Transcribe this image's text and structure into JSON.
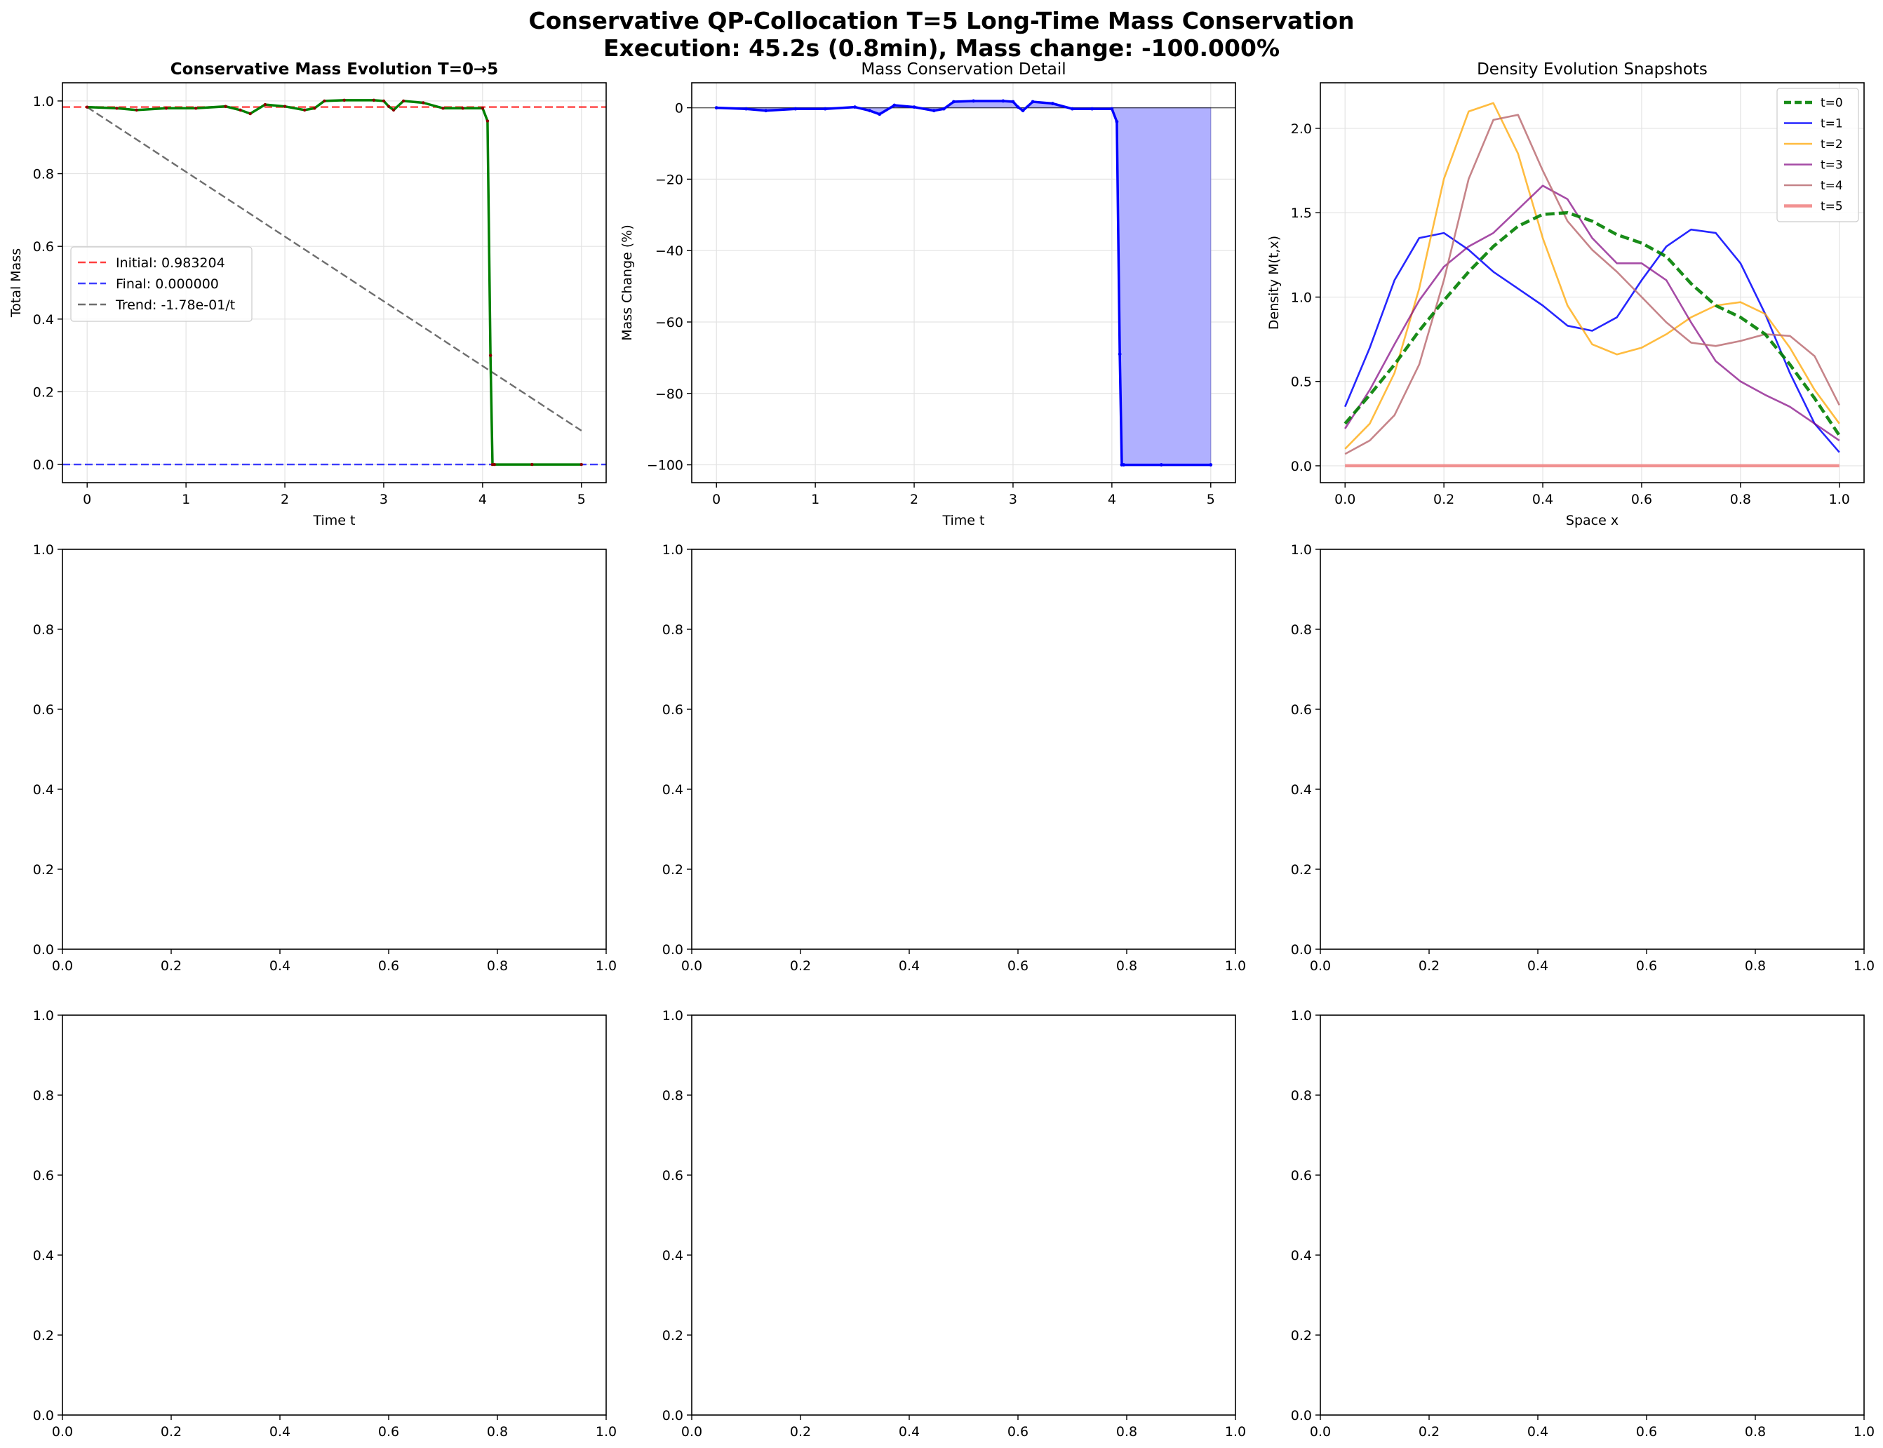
{
  "figure": {
    "title_line1": "Conservative QP-Collocation T=5 Long-Time Mass Conservation",
    "title_line2": "Execution: 45.2s (0.8min), Mass change: -100.000%"
  },
  "colors": {
    "mass": "#008000",
    "mass_dots": "#8b0000",
    "initial": "#ff0000",
    "final": "#0000ff",
    "trend": "#555555",
    "change": "#0000ff",
    "fill": "#b0b0ff",
    "t0": "#008000",
    "t1": "#0000ff",
    "t2": "#ffa500",
    "t3": "#800080",
    "t4": "#bc6f74",
    "t5": "#f08080"
  },
  "chart_data": [
    {
      "type": "line",
      "title": "Conservative Mass Evolution T=0→5",
      "xlabel": "Time t",
      "ylabel": "Total Mass",
      "xlim": [
        -0.25,
        5.25
      ],
      "ylim": [
        -0.05,
        1.05
      ],
      "xticks": [
        "0",
        "1",
        "2",
        "3",
        "4",
        "5"
      ],
      "yticks": [
        "0.0",
        "0.2",
        "0.4",
        "0.6",
        "0.8",
        "1.0"
      ],
      "grid": true,
      "legend_position": "center-left",
      "series": [
        {
          "name": "",
          "x": [
            0,
            0.3,
            0.5,
            0.8,
            1.1,
            1.4,
            1.55,
            1.65,
            1.8,
            2.0,
            2.2,
            2.3,
            2.4,
            2.6,
            2.9,
            3.0,
            3.05,
            3.1,
            3.2,
            3.4,
            3.6,
            3.8,
            4.0,
            4.05,
            4.08,
            4.1,
            4.12,
            4.5,
            5.0
          ],
          "y": [
            0.983,
            0.98,
            0.975,
            0.98,
            0.98,
            0.985,
            0.975,
            0.965,
            0.99,
            0.985,
            0.975,
            0.98,
            1.0,
            1.002,
            1.002,
            1.0,
            0.985,
            0.975,
            1.0,
            0.995,
            0.98,
            0.98,
            0.98,
            0.945,
            0.3,
            0.0,
            0.0,
            0.0,
            0.0
          ]
        },
        {
          "name": "Initial: 0.983204",
          "x": [
            -0.25,
            5.25
          ],
          "y": [
            0.983204,
            0.983204
          ]
        },
        {
          "name": "Final: 0.000000",
          "x": [
            -0.25,
            5.25
          ],
          "y": [
            0,
            0
          ]
        },
        {
          "name": "Trend: -1.78e-01/t",
          "x": [
            0,
            5
          ],
          "y": [
            0.983,
            0.093
          ]
        }
      ]
    },
    {
      "type": "area",
      "title": "Mass Conservation Detail",
      "xlabel": "Time t",
      "ylabel": "Mass Change (%)",
      "xlim": [
        -0.25,
        5.25
      ],
      "ylim": [
        -105,
        7
      ],
      "xticks": [
        "0",
        "1",
        "2",
        "3",
        "4",
        "5"
      ],
      "yticks": [
        "−100",
        "−80",
        "−60",
        "−40",
        "−20",
        "0"
      ],
      "reference_line": 0,
      "grid": true,
      "series": [
        {
          "name": "",
          "x": [
            0,
            0.3,
            0.5,
            0.8,
            1.1,
            1.4,
            1.55,
            1.65,
            1.8,
            2.0,
            2.2,
            2.3,
            2.4,
            2.6,
            2.9,
            3.0,
            3.05,
            3.1,
            3.2,
            3.4,
            3.6,
            3.8,
            4.0,
            4.05,
            4.08,
            4.1,
            4.12,
            4.5,
            5.0
          ],
          "y": [
            0,
            -0.3,
            -0.8,
            -0.3,
            -0.3,
            0.2,
            -0.8,
            -1.8,
            0.7,
            0.2,
            -0.8,
            -0.3,
            1.7,
            1.9,
            1.9,
            1.7,
            0.2,
            -0.8,
            1.7,
            1.2,
            -0.3,
            -0.3,
            -0.3,
            -3.9,
            -69,
            -100,
            -100,
            -100,
            -100
          ]
        }
      ]
    },
    {
      "type": "line",
      "title": "Density Evolution Snapshots",
      "xlabel": "Space x",
      "ylabel": "Density M(t,x)",
      "xlim": [
        -0.05,
        1.05
      ],
      "ylim": [
        -0.1,
        2.27
      ],
      "xticks": [
        "0.0",
        "0.2",
        "0.4",
        "0.6",
        "0.8",
        "1.0"
      ],
      "yticks": [
        "0.0",
        "0.5",
        "1.0",
        "1.5",
        "2.0"
      ],
      "grid": true,
      "legend_position": "top-right",
      "series": [
        {
          "name": "t=0",
          "x": [
            0,
            0.05,
            0.1,
            0.15,
            0.2,
            0.25,
            0.3,
            0.35,
            0.4,
            0.45,
            0.5,
            0.55,
            0.6,
            0.65,
            0.7,
            0.75,
            0.8,
            0.85,
            0.9,
            0.95,
            1.0
          ],
          "y": [
            0.25,
            0.42,
            0.6,
            0.8,
            0.98,
            1.15,
            1.3,
            1.42,
            1.49,
            1.5,
            1.45,
            1.37,
            1.32,
            1.24,
            1.08,
            0.95,
            0.88,
            0.78,
            0.6,
            0.4,
            0.18
          ]
        },
        {
          "name": "t=1",
          "x": [
            0,
            0.05,
            0.1,
            0.15,
            0.2,
            0.25,
            0.3,
            0.35,
            0.4,
            0.45,
            0.5,
            0.55,
            0.6,
            0.65,
            0.7,
            0.75,
            0.8,
            0.85,
            0.9,
            0.95,
            1.0
          ],
          "y": [
            0.35,
            0.7,
            1.1,
            1.35,
            1.38,
            1.28,
            1.15,
            1.05,
            0.95,
            0.83,
            0.8,
            0.88,
            1.1,
            1.3,
            1.4,
            1.38,
            1.2,
            0.9,
            0.55,
            0.25,
            0.08
          ]
        },
        {
          "name": "t=2",
          "x": [
            0,
            0.05,
            0.1,
            0.15,
            0.2,
            0.25,
            0.3,
            0.35,
            0.4,
            0.45,
            0.5,
            0.55,
            0.6,
            0.65,
            0.7,
            0.75,
            0.8,
            0.85,
            0.9,
            0.95,
            1.0
          ],
          "y": [
            0.1,
            0.25,
            0.55,
            1.05,
            1.7,
            2.1,
            2.15,
            1.85,
            1.35,
            0.95,
            0.72,
            0.66,
            0.7,
            0.78,
            0.88,
            0.95,
            0.97,
            0.9,
            0.7,
            0.45,
            0.25
          ]
        },
        {
          "name": "t=3",
          "x": [
            0,
            0.05,
            0.1,
            0.15,
            0.2,
            0.25,
            0.3,
            0.35,
            0.4,
            0.45,
            0.5,
            0.55,
            0.6,
            0.65,
            0.7,
            0.75,
            0.8,
            0.85,
            0.9,
            0.95,
            1.0
          ],
          "y": [
            0.22,
            0.45,
            0.72,
            0.98,
            1.18,
            1.3,
            1.38,
            1.52,
            1.66,
            1.58,
            1.35,
            1.2,
            1.2,
            1.1,
            0.85,
            0.62,
            0.5,
            0.42,
            0.35,
            0.25,
            0.15
          ]
        },
        {
          "name": "t=4",
          "x": [
            0,
            0.05,
            0.1,
            0.15,
            0.2,
            0.25,
            0.3,
            0.35,
            0.4,
            0.45,
            0.5,
            0.55,
            0.6,
            0.65,
            0.7,
            0.75,
            0.8,
            0.85,
            0.9,
            0.95,
            1.0
          ],
          "y": [
            0.07,
            0.15,
            0.3,
            0.6,
            1.1,
            1.7,
            2.05,
            2.08,
            1.75,
            1.45,
            1.28,
            1.15,
            1.0,
            0.85,
            0.73,
            0.71,
            0.74,
            0.78,
            0.77,
            0.65,
            0.36
          ]
        },
        {
          "name": "t=5",
          "x": [
            0,
            1
          ],
          "y": [
            0,
            0
          ]
        }
      ]
    }
  ],
  "empty_axes": {
    "xticks": [
      "0.0",
      "0.2",
      "0.4",
      "0.6",
      "0.8",
      "1.0"
    ],
    "yticks": [
      "0.0",
      "0.2",
      "0.4",
      "0.6",
      "0.8",
      "1.0"
    ]
  }
}
